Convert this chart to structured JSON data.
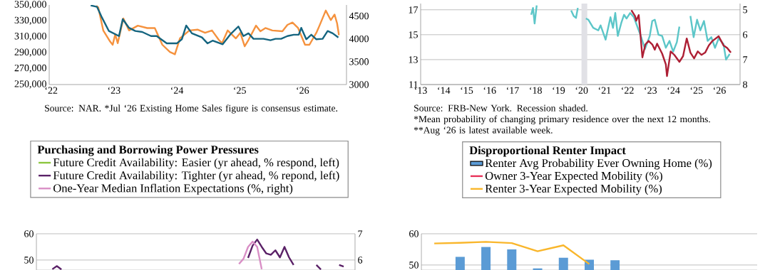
{
  "chart_data": [
    {
      "type": "line",
      "marker": "none",
      "grid": false,
      "legend": false,
      "xlim": [
        21.97,
        26.7
      ],
      "xticks": [
        {
          "value": 22,
          "label": "‘22"
        },
        {
          "value": 23,
          "label": "‘23"
        },
        {
          "value": 24,
          "label": "‘24"
        },
        {
          "value": 25,
          "label": "‘25"
        },
        {
          "value": 26,
          "label": "‘26"
        }
      ],
      "ylim": [
        250000,
        350000
      ],
      "yticks": [
        {
          "value": 250000,
          "label": "250,000"
        },
        {
          "value": 270000,
          "label": "270,000"
        },
        {
          "value": 290000,
          "label": "290,000"
        },
        {
          "value": 310000,
          "label": "310,000"
        },
        {
          "value": 330000,
          "label": "330,000"
        },
        {
          "value": 350000,
          "label": "350,000"
        }
      ],
      "y2lim": [
        3000,
        4740
      ],
      "y2ticks": [
        3000,
        3500,
        4000,
        4500
      ],
      "series": [
        {
          "color": "#f5923e",
          "x": [
            22.72,
            22.75,
            22.83,
            22.94,
            22.98,
            23.02,
            23.06,
            23.15,
            23.24,
            23.38,
            23.53,
            23.65,
            23.77,
            23.89,
            23.97,
            24.05,
            24.2,
            24.33,
            24.45,
            24.56,
            24.67,
            24.72,
            24.81,
            24.94,
            25.01,
            25.08,
            25.14,
            25.26,
            25.33,
            25.41,
            25.52,
            25.68,
            25.76,
            25.84,
            25.93,
            26.04,
            26.11,
            26.22,
            26.27,
            26.37,
            26.45,
            26.51,
            26.55,
            26.58
          ],
          "values": [
            349000,
            347000,
            318000,
            304000,
            300000,
            313000,
            302000,
            333000,
            318000,
            324000,
            321000,
            321000,
            300000,
            291000,
            288000,
            308000,
            318000,
            319000,
            315000,
            318000,
            306000,
            302000,
            318000,
            308000,
            315000,
            298000,
            306000,
            324000,
            317000,
            321000,
            318000,
            317000,
            325000,
            328000,
            321000,
            300000,
            300000,
            315000,
            324000,
            343000,
            331000,
            338000,
            327000,
            312000
          ]
        },
        {
          "color": "#14647f",
          "axis": "y2",
          "x": [
            22.63,
            22.73,
            22.8,
            22.92,
            23.08,
            23.14,
            23.24,
            23.34,
            23.45,
            23.59,
            23.68,
            23.84,
            24.0,
            24.08,
            24.15,
            24.24,
            24.4,
            24.49,
            24.57,
            24.73,
            24.86,
            24.98,
            25.06,
            25.14,
            25.22,
            25.38,
            25.49,
            25.57,
            25.66,
            25.76,
            25.86,
            25.94,
            25.98,
            26.06,
            26.14,
            26.22,
            26.32,
            26.4,
            26.48,
            26.57
          ],
          "values": [
            4730,
            4700,
            4490,
            4170,
            4060,
            4430,
            4240,
            4170,
            4150,
            4060,
            4060,
            3900,
            3900,
            3990,
            4290,
            4120,
            4030,
            3900,
            3960,
            3880,
            4110,
            4270,
            4060,
            4120,
            4000,
            4000,
            3970,
            4000,
            4000,
            4060,
            4090,
            4090,
            4240,
            3990,
            4090,
            3990,
            4000,
            4170,
            4120,
            4030
          ]
        }
      ],
      "annotations": [
        "Source: NAR. *Jul ‘26 Existing Home Sales figure is consensus estimate."
      ]
    },
    {
      "type": "line",
      "marker": "none",
      "grid": "y",
      "legend": false,
      "xlim": [
        13,
        26.9
      ],
      "xticks": [
        {
          "value": 13,
          "label": "‘13"
        },
        {
          "value": 14,
          "label": "‘14"
        },
        {
          "value": 15,
          "label": "‘15"
        },
        {
          "value": 16,
          "label": "‘16"
        },
        {
          "value": 17,
          "label": "‘17"
        },
        {
          "value": 18,
          "label": "‘18"
        },
        {
          "value": 19,
          "label": "‘19"
        },
        {
          "value": 20,
          "label": "‘20"
        },
        {
          "value": 21,
          "label": "‘21"
        },
        {
          "value": 22,
          "label": "‘22"
        },
        {
          "value": 23,
          "label": "‘23"
        },
        {
          "value": 24,
          "label": "‘24"
        },
        {
          "value": 25,
          "label": "‘25"
        },
        {
          "value": 26,
          "label": "‘26"
        }
      ],
      "ylim": [
        11,
        17.5
      ],
      "yticks": [
        11,
        13,
        15,
        17
      ],
      "y2lim": [
        8,
        4.75
      ],
      "y2ticks": [
        5,
        6,
        7,
        8
      ],
      "bands": [
        {
          "axis": "x",
          "from": 20.0,
          "to": 20.25,
          "color": "#e1e1e6"
        }
      ],
      "series": [
        {
          "color": "#5cc6c8",
          "x": [
            null,
            17.81,
            17.89,
            17.96,
            18.05,
            null,
            null,
            null,
            19.55,
            19.66,
            19.76,
            19.84,
            null,
            null,
            null,
            20.19,
            20.3,
            20.51,
            20.73,
            20.83,
            21.05,
            21.26,
            21.37,
            21.47,
            21.58,
            21.74,
            21.85,
            21.96,
            22.12,
            22.28,
            22.6,
            22.76,
            22.97,
            23.08,
            23.19,
            23.35,
            23.51,
            23.67,
            23.83,
            23.99,
            24.15,
            24.26,
            null,
            null,
            null,
            24.74,
            24.88,
            25.03,
            25.17,
            25.33,
            25.49,
            25.65,
            25.81,
            25.97,
            26.18,
            26.29,
            26.45
          ],
          "values": [
            null,
            16.6,
            17.15,
            15.9,
            17.35,
            null,
            null,
            null,
            16.95,
            16.5,
            16.35,
            17.15,
            null,
            null,
            null,
            16.3,
            16.2,
            15.55,
            15.35,
            15.75,
            14.6,
            16.4,
            15.55,
            16.75,
            14.9,
            16.0,
            16.6,
            16.3,
            16.75,
            16.4,
            14.8,
            13.85,
            14.9,
            16.1,
            16.2,
            15.0,
            14.9,
            13.95,
            14.5,
            13.65,
            14.4,
            15.65,
            null,
            null,
            null,
            16.5,
            14.8,
            16.2,
            15.35,
            16.1,
            14.5,
            14.8,
            13.95,
            14.7,
            14.25,
            13.0,
            13.45
          ]
        },
        {
          "color": "#ad1f34",
          "axis": "y2",
          "x": [
            22.17,
            22.33,
            22.38,
            22.49,
            22.65,
            22.78,
            22.92,
            23.08,
            23.19,
            23.29,
            23.51,
            23.67,
            23.72,
            23.88,
            24.04,
            24.26,
            24.42,
            24.58,
            24.74,
            24.9,
            25.06,
            25.22,
            25.38,
            25.54,
            25.7,
            25.97,
            26.18,
            26.34,
            26.5
          ],
          "values": [
            5.02,
            5.25,
            5.44,
            5.21,
            6.91,
            6.39,
            6.25,
            6.39,
            6.6,
            6.36,
            6.76,
            7.19,
            7.66,
            6.67,
            6.81,
            7.09,
            6.86,
            6.15,
            6.72,
            6.95,
            6.67,
            6.81,
            6.72,
            6.43,
            6.25,
            6.06,
            6.43,
            6.53,
            6.72
          ]
        }
      ],
      "annotations": [
        "Source: FRB-New York. Recession shaded.",
        "*Mean probability of changing primary residence over the next 12 months.",
        "**Aug ‘26 is latest available week."
      ]
    },
    {
      "type": "line",
      "marker": "none",
      "grid": "y",
      "legend": "top",
      "legend_title": "Purchasing and Borrowing Power Pressures",
      "categories": [
        null,
        null,
        null,
        null,
        null,
        null,
        null,
        null,
        null,
        null,
        null,
        null,
        null,
        null,
        null,
        null,
        null,
        null,
        null,
        null,
        null,
        null,
        null,
        null,
        null,
        null,
        null,
        null,
        null,
        null,
        null,
        null,
        null,
        null,
        null,
        null,
        null,
        null,
        null,
        null,
        null,
        null,
        null,
        null,
        null,
        null,
        null,
        null,
        null,
        null,
        null,
        null,
        null,
        null,
        null,
        null,
        null,
        null,
        null,
        null,
        null,
        null,
        null,
        null,
        null,
        null,
        null,
        null,
        null,
        null
      ],
      "ylim": [
        46.2,
        60
      ],
      "yticks": [
        50,
        60
      ],
      "y2lim": [
        5.62,
        7
      ],
      "y2ticks": [
        6,
        7
      ],
      "series": [
        {
          "name": "Future Credit Availability: Easier (yr ahead, % respond, left)",
          "color": "#8cc63f",
          "values": [
            null,
            null,
            null,
            null,
            null,
            null,
            null,
            null,
            null,
            null,
            null,
            null,
            null,
            null,
            null,
            null,
            null,
            null,
            null,
            null,
            null,
            null,
            null,
            null,
            null,
            null,
            null,
            null,
            null,
            null,
            null,
            null,
            null,
            null,
            null,
            null,
            null,
            null,
            null,
            null,
            null,
            null,
            null,
            null,
            null,
            null,
            null,
            null,
            null,
            null,
            null,
            null,
            null,
            null,
            null,
            null,
            null,
            null,
            null,
            null,
            null,
            null,
            null,
            null,
            null,
            null,
            null,
            null,
            null,
            null
          ]
        },
        {
          "name": "Future Credit Availability: Tighter (yr ahead, % repond, left)",
          "color": "#5a2167",
          "values": [
            null,
            null,
            null,
            46.5,
            47.7,
            46.4,
            null,
            null,
            null,
            null,
            null,
            null,
            null,
            null,
            null,
            null,
            null,
            null,
            null,
            null,
            null,
            null,
            null,
            null,
            null,
            null,
            null,
            null,
            null,
            null,
            null,
            null,
            null,
            null,
            null,
            null,
            null,
            null,
            null,
            null,
            null,
            null,
            null,
            null,
            null,
            null,
            50.8,
            55.5,
            57.8,
            55.0,
            52.5,
            52.0,
            53.7,
            51.0,
            55.0,
            51.0,
            48.1,
            null,
            null,
            null,
            null,
            48.1,
            46.4,
            null,
            null,
            null,
            48.1,
            47.5,
            null,
            null
          ]
        },
        {
          "name": "One-Year Median Inflation Expectations (%, right)",
          "color": "#d98fc6",
          "axis": "y2",
          "values": [
            null,
            null,
            null,
            null,
            null,
            null,
            null,
            null,
            null,
            null,
            null,
            null,
            null,
            null,
            null,
            null,
            null,
            null,
            null,
            null,
            null,
            null,
            null,
            null,
            null,
            null,
            null,
            null,
            null,
            null,
            null,
            null,
            null,
            null,
            null,
            null,
            null,
            null,
            null,
            null,
            null,
            null,
            null,
            null,
            5.85,
            6.05,
            6.5,
            6.7,
            6.5,
            5.65,
            null,
            null,
            null,
            null,
            null,
            null,
            null,
            null,
            null,
            null,
            null,
            null,
            null,
            null,
            null,
            null,
            null,
            null,
            null,
            null
          ]
        }
      ]
    },
    {
      "type": "bar",
      "marker": "none",
      "grid": "y",
      "legend": "top",
      "legend_title": "Disproportional Renter Impact",
      "categories": [
        null,
        null,
        null,
        null,
        null,
        null,
        null,
        null,
        null,
        null,
        null,
        null,
        null
      ],
      "ylim": [
        48.4,
        60
      ],
      "yticks": [
        50,
        60
      ],
      "series": [
        {
          "name": "Renter Avg Probability Ever Owning Home (%)",
          "type": "bar",
          "color": "#5b9bd5",
          "values": [
            null,
            52.6,
            55.8,
            55.0,
            48.9,
            52.3,
            51.7,
            51.5,
            null,
            null,
            null,
            null,
            null
          ]
        },
        {
          "name": "Owner 3-Year Expected Mobility (%)",
          "type": "line",
          "color": "#e8335a",
          "values": [
            null,
            null,
            null,
            null,
            null,
            null,
            null,
            null,
            null,
            null,
            null,
            null,
            null
          ]
        },
        {
          "name": "Renter 3-Year Expected Mobility (%)",
          "type": "line",
          "color": "#f9b62b",
          "values": [
            56.9,
            57.1,
            57.4,
            57.0,
            54.4,
            56.3,
            50.3,
            null,
            null,
            null,
            null,
            null,
            null
          ]
        }
      ]
    }
  ]
}
